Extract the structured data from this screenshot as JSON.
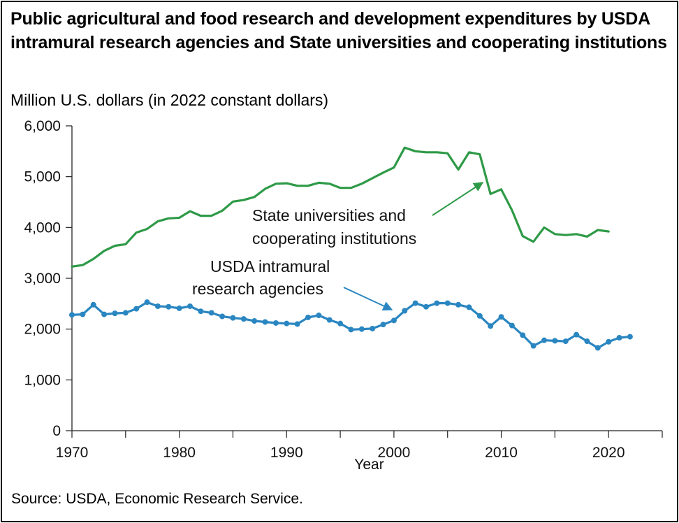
{
  "title": "Public agricultural and food research and development expenditures by USDA intramural research agencies and State universities and cooperating institutions",
  "source": "Source: USDA, Economic Research Service.",
  "chart_data": {
    "type": "line",
    "title": "Public agricultural and food research and development expenditures by USDA intramural research agencies and State universities and cooperating institutions",
    "ylabel": "Million U.S. dollars (in 2022 constant dollars)",
    "xlabel": "Year",
    "xlim": [
      1970,
      2025
    ],
    "ylim": [
      0,
      6000
    ],
    "xticks": [
      1970,
      1980,
      1990,
      2000,
      2010,
      2020
    ],
    "xtick_labels": [
      "1970",
      "1980",
      "1990",
      "2000",
      "2010",
      "2020"
    ],
    "yticks": [
      0,
      1000,
      2000,
      3000,
      4000,
      5000,
      6000
    ],
    "ytick_labels": [
      "0",
      "1,000",
      "2,000",
      "3,000",
      "4,000",
      "5,000",
      "6,000"
    ],
    "grid": false,
    "series": [
      {
        "name": "State universities and cooperating institutions",
        "label_lines": [
          "State universities and",
          "cooperating institutions"
        ],
        "color": "#2e9a47",
        "markers": false,
        "x": [
          1970,
          1971,
          1972,
          1973,
          1974,
          1975,
          1976,
          1977,
          1978,
          1979,
          1980,
          1981,
          1982,
          1983,
          1984,
          1985,
          1986,
          1987,
          1988,
          1989,
          1990,
          1991,
          1992,
          1993,
          1994,
          1995,
          1996,
          1997,
          1998,
          1999,
          2000,
          2001,
          2002,
          2003,
          2004,
          2005,
          2006,
          2007,
          2008,
          2009,
          2010,
          2011,
          2012,
          2013,
          2014,
          2015,
          2016,
          2017,
          2018,
          2019,
          2020
        ],
        "values": [
          3230,
          3260,
          3380,
          3540,
          3640,
          3670,
          3900,
          3970,
          4120,
          4180,
          4190,
          4320,
          4230,
          4230,
          4330,
          4510,
          4540,
          4600,
          4760,
          4860,
          4870,
          4820,
          4820,
          4880,
          4860,
          4780,
          4780,
          4860,
          4970,
          5080,
          5180,
          5570,
          5500,
          5480,
          5480,
          5460,
          5140,
          5480,
          5440,
          4660,
          4750,
          4340,
          3830,
          3720,
          4000,
          3870,
          3850,
          3870,
          3820,
          3950,
          3920
        ]
      },
      {
        "name": "USDA intramural research agencies",
        "label_lines": [
          "USDA intramural",
          "research agencies"
        ],
        "color": "#2a86c1",
        "markers": true,
        "x": [
          1970,
          1971,
          1972,
          1973,
          1974,
          1975,
          1976,
          1977,
          1978,
          1979,
          1980,
          1981,
          1982,
          1983,
          1984,
          1985,
          1986,
          1987,
          1988,
          1989,
          1990,
          1991,
          1992,
          1993,
          1994,
          1995,
          1996,
          1997,
          1998,
          1999,
          2000,
          2001,
          2002,
          2003,
          2004,
          2005,
          2006,
          2007,
          2008,
          2009,
          2010,
          2011,
          2012,
          2013,
          2014,
          2015,
          2016,
          2017,
          2018,
          2019,
          2020,
          2021,
          2022
        ],
        "values": [
          2280,
          2290,
          2480,
          2290,
          2310,
          2320,
          2400,
          2530,
          2450,
          2440,
          2410,
          2450,
          2350,
          2320,
          2250,
          2220,
          2200,
          2160,
          2140,
          2120,
          2110,
          2100,
          2230,
          2270,
          2180,
          2110,
          1990,
          2000,
          2010,
          2090,
          2170,
          2360,
          2510,
          2440,
          2510,
          2510,
          2480,
          2430,
          2260,
          2060,
          2240,
          2070,
          1880,
          1670,
          1780,
          1770,
          1760,
          1890,
          1760,
          1630,
          1750,
          1830,
          1850
        ]
      }
    ]
  }
}
